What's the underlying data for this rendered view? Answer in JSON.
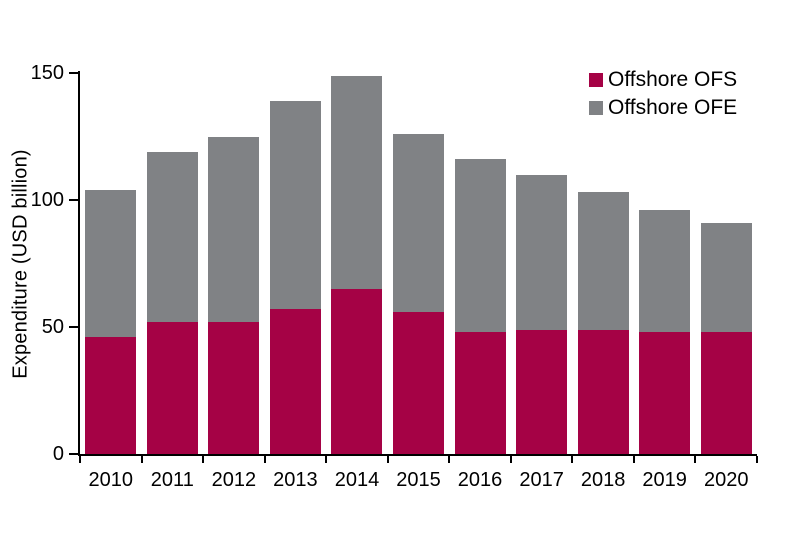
{
  "chart_data": {
    "type": "bar",
    "stacked": true,
    "title": "",
    "xlabel": "",
    "ylabel": "Expenditure (USD billion)",
    "categories": [
      "2010",
      "2011",
      "2012",
      "2013",
      "2014",
      "2015",
      "2016",
      "2017",
      "2018",
      "2019",
      "2020"
    ],
    "series": [
      {
        "name": "Offshore OFS",
        "color": "#A50245",
        "values": [
          46,
          52,
          52,
          57,
          65,
          56,
          48,
          49,
          49,
          48,
          48
        ]
      },
      {
        "name": "Offshore OFE",
        "color": "#808285",
        "values": [
          58,
          67,
          73,
          82,
          84,
          70,
          68,
          61,
          54,
          48,
          43
        ]
      }
    ],
    "stack_totals": [
      104,
      119,
      125,
      139,
      149,
      126,
      116,
      110,
      103,
      96,
      91
    ],
    "ylim": [
      0,
      150
    ],
    "yticks": [
      0,
      50,
      100,
      150
    ],
    "grid": false,
    "legend_position": "top-right",
    "axis_color": "#000000",
    "text_color": "#000000",
    "background_color": "#ffffff"
  }
}
